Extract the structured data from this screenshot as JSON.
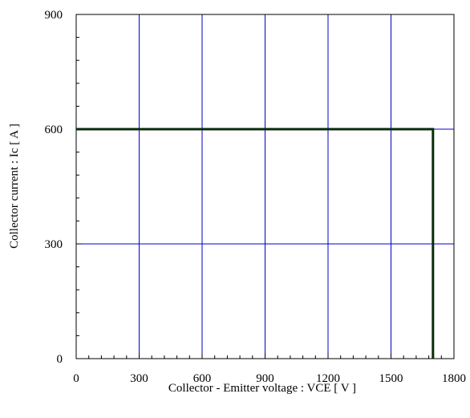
{
  "chart_data": {
    "type": "line",
    "title": "",
    "xlabel": "Collector - Emitter voltage  :  VCE  [ V ]",
    "ylabel": "Collector current  : Ic  [ A ]",
    "xlim": [
      0,
      1800
    ],
    "ylim": [
      0,
      900
    ],
    "x_ticks": [
      0,
      300,
      600,
      900,
      1200,
      1500,
      1800
    ],
    "x_tick_labels": [
      "0",
      "300",
      "600",
      "900",
      "1200",
      "1500",
      "1800"
    ],
    "y_ticks": [
      0,
      300,
      600,
      900
    ],
    "y_tick_labels": [
      "0",
      "300",
      "600",
      "900"
    ],
    "x_minor_step": 60,
    "y_minor_step": 60,
    "grid": true,
    "grid_color": "#0000cc",
    "series": [
      {
        "color": "#0a2a0a",
        "x": [
          0,
          1700,
          1700
        ],
        "y": [
          600,
          600,
          0
        ]
      }
    ]
  }
}
